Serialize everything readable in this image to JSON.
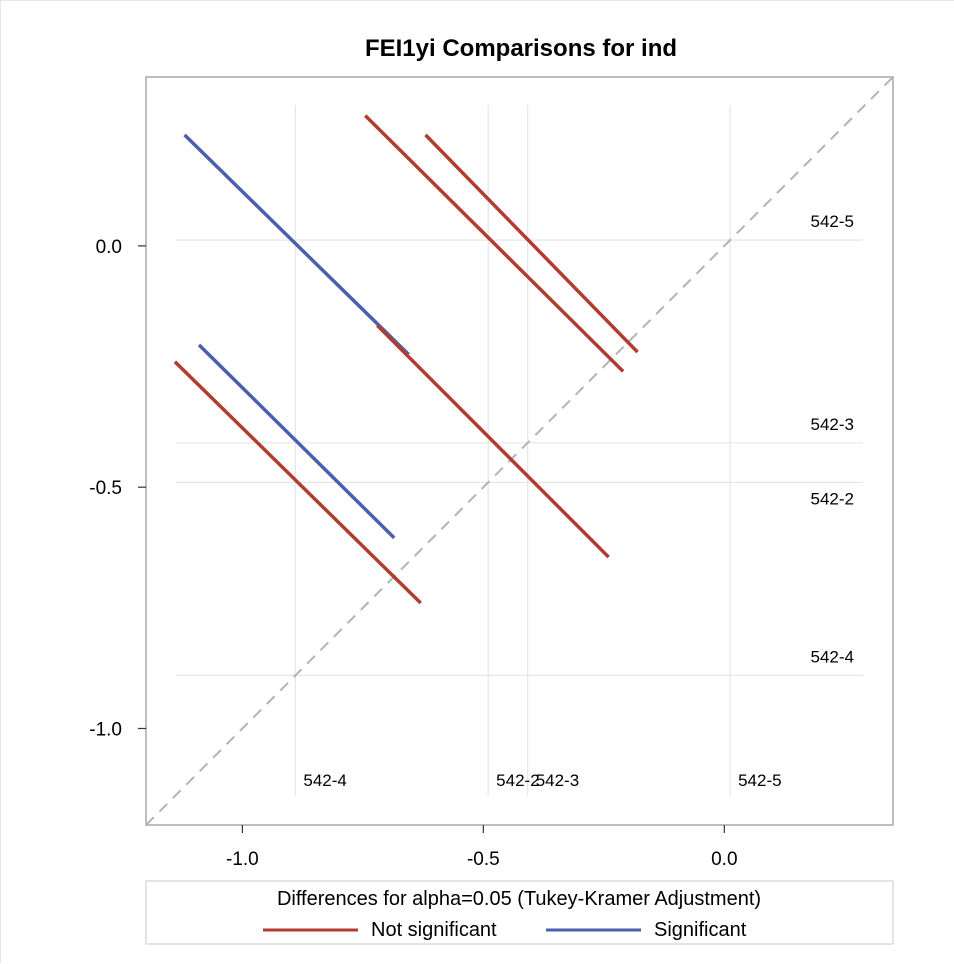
{
  "chart_data": {
    "type": "diffogram",
    "title": "FEI1yi Comparisons for ind",
    "xlim": [
      -1.2,
      0.35
    ],
    "ylim": [
      -1.2,
      0.35
    ],
    "x_ticks": [
      "-1.0",
      "-0.5",
      "0.0"
    ],
    "y_ticks": [
      "-1.0",
      "-0.5",
      "0.0"
    ],
    "x_tick_values": [
      -1.0,
      -0.5,
      0.0
    ],
    "y_tick_values": [
      -1.0,
      -0.5,
      0.0
    ],
    "levels": [
      {
        "name": "542-4",
        "mean": -0.89
      },
      {
        "name": "542-2",
        "mean": -0.49
      },
      {
        "name": "542-3",
        "mean": -0.408
      },
      {
        "name": "542-5",
        "mean": 0.012
      }
    ],
    "comparisons": [
      {
        "pair": "542-2 vs 542-5",
        "x": [
          -0.745,
          -0.21
        ],
        "y": [
          0.27,
          -0.26
        ],
        "significant": false
      },
      {
        "pair": "542-3 vs 542-5",
        "x": [
          -0.62,
          -0.18
        ],
        "y": [
          0.23,
          -0.22
        ],
        "significant": false
      },
      {
        "pair": "542-4 vs 542-5",
        "x": [
          -1.12,
          -0.655
        ],
        "y": [
          0.23,
          -0.225
        ],
        "significant": true
      },
      {
        "pair": "542-2 vs 542-3",
        "x": [
          -0.72,
          -0.24
        ],
        "y": [
          -0.165,
          -0.645
        ],
        "significant": false
      },
      {
        "pair": "542-4 vs 542-3",
        "x": [
          -1.09,
          -0.685
        ],
        "y": [
          -0.205,
          -0.605
        ],
        "significant": true
      },
      {
        "pair": "542-4 vs 542-2",
        "x": [
          -1.14,
          -0.63
        ],
        "y": [
          -0.24,
          -0.74
        ],
        "significant": false
      }
    ],
    "legend": {
      "title": "Differences for alpha=0.05 (Tukey-Kramer Adjustment)",
      "items": [
        {
          "label": "Not significant",
          "color": "#b23c2f"
        },
        {
          "label": "Significant",
          "color": "#4a5fae"
        }
      ]
    },
    "colors": {
      "not_significant": "#b23c2f",
      "significant": "#4a5fae",
      "diagonal": "#b3b3b3",
      "grid": "#e6e6e6"
    }
  }
}
